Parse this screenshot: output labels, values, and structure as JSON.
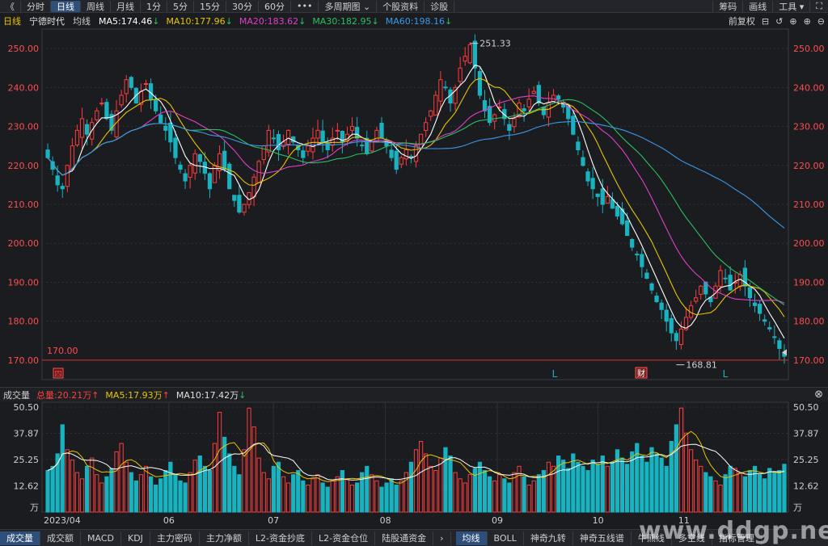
{
  "toolbar": {
    "back": "《",
    "left_tabs": [
      "分时",
      "日线",
      "周线",
      "月线",
      "1分",
      "5分",
      "15分",
      "30分",
      "60分",
      "•••",
      "多周期图 ⌄",
      "个股资料",
      "诊股"
    ],
    "active_tab": 1,
    "right_items": [
      "筹码",
      "画线",
      "工具 ▾",
      "⛶"
    ]
  },
  "info": {
    "period": "日线",
    "stock": "宁德时代",
    "ma_label": "均线",
    "ma5": "MA5:174.46",
    "ma10": "MA10:177.96",
    "ma20": "MA20:183.62",
    "ma30": "MA30:182.95",
    "ma60": "MA60:198.16",
    "arrow_down": "↓",
    "arrow_up": "↑",
    "fq": "前复权",
    "icons": [
      "⊟",
      "↺",
      "⊕",
      "⊕",
      "⊖"
    ],
    "colors": {
      "ma5": "#ffffff",
      "ma10": "#e8c400",
      "ma20": "#e040c8",
      "ma30": "#29c060",
      "ma60": "#3a98e8"
    }
  },
  "price_axis": {
    "labels": [
      "250.00",
      "240.00",
      "230.00",
      "220.00",
      "210.00",
      "200.00",
      "190.00",
      "180.00",
      "170.00"
    ],
    "min": 165,
    "max": 255
  },
  "annotations": {
    "high": "251.33",
    "low": "168.81",
    "line_label": "170.00",
    "marker_left": "四",
    "marker_cai": "财",
    "marker_l1": "L",
    "marker_l2": "L"
  },
  "volume_info": {
    "label": "成交量",
    "total": "总量:20.21万",
    "ma5": "MA5:17.93万",
    "ma10": "MA10:17.42万",
    "close_icon": "⊗"
  },
  "volume_axis": {
    "labels": [
      "50.50",
      "37.87",
      "25.25",
      "12.62",
      "万"
    ],
    "max": 50.5
  },
  "x_axis": {
    "labels": [
      "2023/04",
      "06",
      "07",
      "08",
      "09",
      "10",
      "11"
    ]
  },
  "bottom_tabs": {
    "left": [
      "成交量",
      "成交额",
      "MACD",
      "KDJ",
      "主力密码",
      "主力净额",
      "L2-资金抄底",
      "L2-资金仓位",
      "陆股通资金"
    ],
    "arrow": "›",
    "right": [
      "均线",
      "BOLL",
      "神奇九转",
      "神奇五线谱",
      "牛熊线",
      "多空线",
      "指标管理"
    ]
  },
  "watermark": "www.ddgp.net",
  "chart_data": {
    "type": "candlestick",
    "title": "宁德时代 日线",
    "price_range": [
      165,
      255
    ],
    "volume_unit": "万",
    "ma_periods": [
      5,
      10,
      20,
      30,
      60
    ],
    "high_marker": 251.33,
    "low_marker": 168.81,
    "reference_line": 170.0,
    "close_series": [
      222,
      219,
      215,
      214,
      220,
      225,
      229,
      232,
      228,
      231,
      234,
      236,
      232,
      229,
      234,
      238,
      242,
      240,
      236,
      239,
      241,
      237,
      234,
      231,
      229,
      226,
      222,
      219,
      216,
      220,
      223,
      221,
      218,
      214,
      220,
      223,
      219,
      214,
      211,
      208,
      210,
      213,
      217,
      221,
      225,
      229,
      227,
      224,
      226,
      229,
      226,
      224,
      222,
      225,
      227,
      229,
      226,
      224,
      227,
      229,
      226,
      228,
      230,
      227,
      225,
      223,
      226,
      229,
      227,
      225,
      222,
      219,
      222,
      224,
      222,
      225,
      228,
      231,
      234,
      238,
      242,
      240,
      236,
      240,
      245,
      248,
      251,
      245,
      238,
      234,
      231,
      233,
      235,
      232,
      229,
      232,
      236,
      234,
      237,
      239,
      236,
      233,
      236,
      238,
      237,
      235,
      232,
      228,
      224,
      220,
      216,
      214,
      212,
      210,
      212,
      209,
      207,
      205,
      202,
      199,
      197,
      194,
      191,
      188,
      185,
      183,
      180,
      177,
      175,
      178,
      181,
      184,
      186,
      189,
      187,
      185,
      189,
      193,
      191,
      188,
      190,
      192,
      189,
      186,
      184,
      182,
      180,
      178,
      176,
      173,
      171
    ],
    "volume_series": [
      20,
      22,
      28,
      42,
      30,
      25,
      19,
      16,
      22,
      26,
      18,
      14,
      17,
      21,
      29,
      33,
      24,
      19,
      15,
      18,
      22,
      17,
      13,
      16,
      20,
      24,
      18,
      15,
      14,
      19,
      25,
      27,
      22,
      20,
      33,
      48,
      36,
      28,
      22,
      18,
      30,
      50,
      41,
      26,
      19,
      16,
      22,
      24,
      17,
      14,
      18,
      20,
      15,
      13,
      16,
      18,
      14,
      12,
      15,
      17,
      20,
      16,
      13,
      14,
      19,
      22,
      18,
      15,
      12,
      14,
      16,
      13,
      15,
      19,
      24,
      30,
      34,
      28,
      22,
      20,
      26,
      31,
      27,
      19,
      16,
      14,
      18,
      21,
      24,
      20,
      17,
      15,
      18,
      16,
      14,
      19,
      22,
      17,
      13,
      15,
      18,
      20,
      24,
      22,
      27,
      25,
      21,
      28,
      24,
      22,
      20,
      25,
      23,
      27,
      22,
      24,
      30,
      26,
      23,
      29,
      33,
      27,
      24,
      31,
      28,
      26,
      22,
      34,
      42,
      50,
      38,
      30,
      25,
      22,
      19,
      17,
      15,
      13,
      18,
      22,
      21,
      19,
      17,
      20,
      22,
      18,
      16,
      21,
      19,
      20,
      23
    ]
  }
}
